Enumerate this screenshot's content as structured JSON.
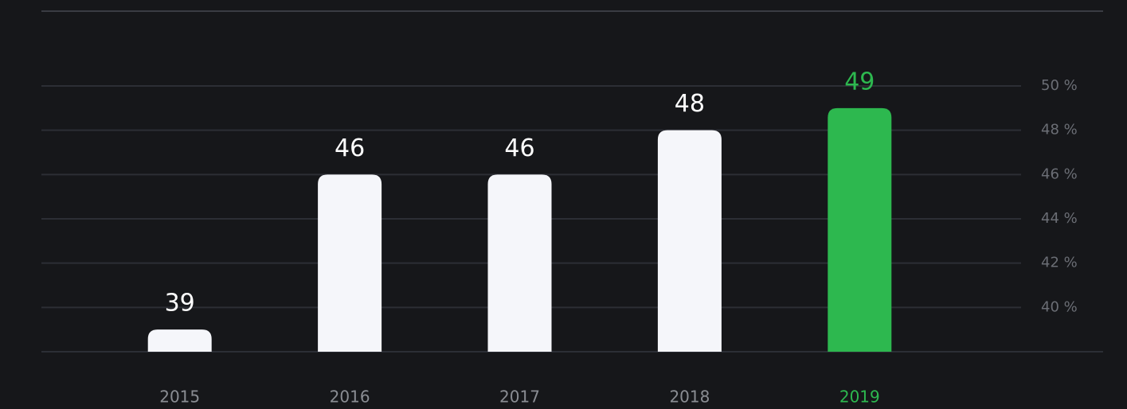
{
  "chart_data": {
    "type": "bar",
    "categories": [
      "2015",
      "2016",
      "2017",
      "2018",
      "2019"
    ],
    "values": [
      39,
      46,
      46,
      48,
      49
    ],
    "color": "#f5f6fa",
    "highlight_color": "#2db84f",
    "highlight": [
      false,
      false,
      false,
      false,
      true
    ],
    "ylim": [
      38,
      50
    ],
    "yticks": [
      {
        "value": 40,
        "label": "40 %"
      },
      {
        "value": 42,
        "label": "42 %"
      },
      {
        "value": 44,
        "label": "44 %"
      },
      {
        "value": 46,
        "label": "46 %"
      },
      {
        "value": 48,
        "label": "48 %"
      },
      {
        "value": 50,
        "label": "50 %"
      }
    ],
    "grid": true
  }
}
